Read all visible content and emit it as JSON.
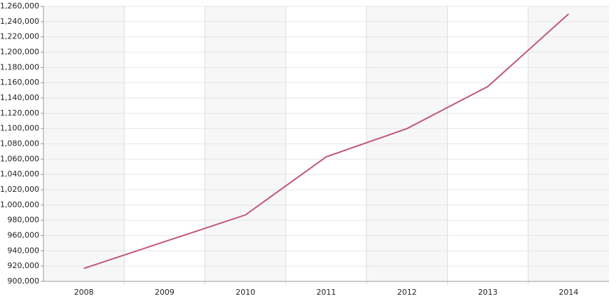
{
  "chart_data": {
    "type": "line",
    "categories": [
      "2008",
      "2009",
      "2010",
      "2011",
      "2012",
      "2013",
      "2014"
    ],
    "series": [
      {
        "color": "#c0577a",
        "values": [
          917000,
          952000,
          987000,
          1063000,
          1100000,
          1155000,
          1250000
        ]
      }
    ],
    "ylim": [
      900000,
      1260000
    ],
    "yticks": [
      {
        "value": 900000,
        "label": "900,000"
      },
      {
        "value": 920000,
        "label": "920,000"
      },
      {
        "value": 940000,
        "label": "940,000"
      },
      {
        "value": 960000,
        "label": "960,000"
      },
      {
        "value": 980000,
        "label": "980,000"
      },
      {
        "value": 1000000,
        "label": "1,000,000"
      },
      {
        "value": 1020000,
        "label": "1,020,000"
      },
      {
        "value": 1040000,
        "label": "1,040,000"
      },
      {
        "value": 1060000,
        "label": "1,060,000"
      },
      {
        "value": 1080000,
        "label": "1,080,000"
      },
      {
        "value": 1100000,
        "label": "1,100,000"
      },
      {
        "value": 1120000,
        "label": "1,120,000"
      },
      {
        "value": 1140000,
        "label": "1,140,000"
      },
      {
        "value": 1160000,
        "label": "1,160,000"
      },
      {
        "value": 1180000,
        "label": "1,180,000"
      },
      {
        "value": 1200000,
        "label": "1,200,000"
      },
      {
        "value": 1220000,
        "label": "1,220,000"
      },
      {
        "value": 1240000,
        "label": "1,240,000"
      },
      {
        "value": 1260000,
        "label": "1,260,000"
      }
    ],
    "grid": true
  }
}
